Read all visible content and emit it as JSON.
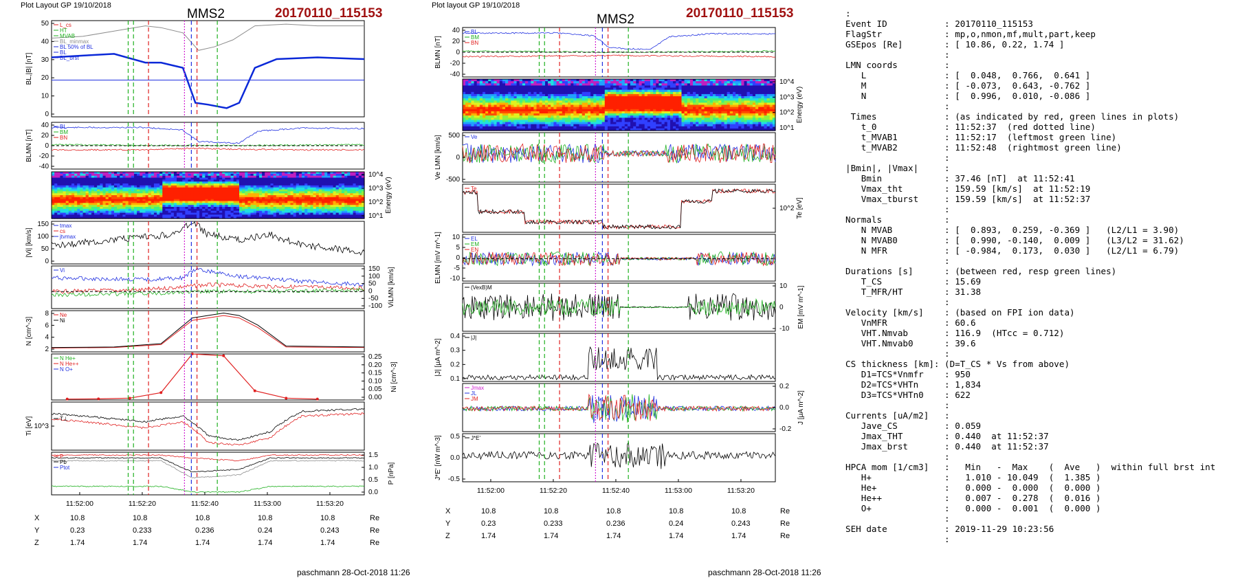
{
  "left_plot": {
    "layout_label": "Plot Layout GP 19/10/2018",
    "spacecraft": "MMS2",
    "event_id": "20170110_115153",
    "footer": "paschmann 28-Oct-2018 11:26",
    "x_ticks": [
      "11:52:00",
      "11:52:20",
      "11:52:40",
      "11:53:00",
      "11:53:20"
    ],
    "coords": [
      {
        "label": "X",
        "values": [
          "10.8",
          "10.8",
          "10.8",
          "10.8",
          "10.8"
        ],
        "unit": "Re"
      },
      {
        "label": "Y",
        "values": [
          "0.23",
          "0.233",
          "0.236",
          "0.24",
          "0.243"
        ],
        "unit": "Re"
      },
      {
        "label": "Z",
        "values": [
          "1.74",
          "1.74",
          "1.74",
          "1.74",
          "1.74"
        ],
        "unit": "Re"
      }
    ]
  },
  "middle_plot": {
    "layout_label": "Plot layout GP 19/10/2018",
    "spacecraft": "MMS2",
    "event_id": "20170110_115153",
    "footer": "paschmann 28-Oct-2018 11:26",
    "x_ticks": [
      "11:52:00",
      "11:52:20",
      "11:52:40",
      "11:53:00",
      "11:53:20"
    ],
    "coords": [
      {
        "label": "X",
        "values": [
          "10.8",
          "10.8",
          "10.8",
          "10.8",
          "10.8"
        ],
        "unit": "Re"
      },
      {
        "label": "Y",
        "values": [
          "0.23",
          "0.233",
          "0.236",
          "0.24",
          "0.243"
        ],
        "unit": "Re"
      },
      {
        "label": "Z",
        "values": [
          "1.74",
          "1.74",
          "1.74",
          "1.74",
          "1.74"
        ],
        "unit": "Re"
      }
    ]
  },
  "colors": {
    "red": "#e02020",
    "green": "#1fb01f",
    "blue": "#2030e0",
    "black": "#000000",
    "gray": "#8c8c8c",
    "thick_blue": "#0a28d8",
    "title_red": "#a01010",
    "magenta": "#d020d0"
  },
  "chart_data": [
    {
      "type": "line",
      "panel": "left-B",
      "ylabel": "BL,|B| [nT]",
      "ylim": [
        0,
        55
      ],
      "yticks": [
        "50",
        "40",
        "30",
        "20",
        "10",
        "0"
      ],
      "legend": [
        "L_cs",
        "HT",
        "MVAB",
        "BL_minmax",
        "BL 50% of BL",
        "BL",
        "BL_brst"
      ],
      "series": [
        {
          "name": "|B|",
          "color": "#8c8c8c",
          "x": [
            0,
            0.1,
            0.2,
            0.3,
            0.35,
            0.42,
            0.47,
            0.52,
            0.58,
            0.65,
            0.75,
            0.85,
            1
          ],
          "values": [
            45,
            46,
            49,
            52,
            51,
            48,
            38,
            40,
            44,
            52,
            53,
            52,
            52
          ]
        },
        {
          "name": "BL",
          "color": "#0a28d8",
          "x": [
            0,
            0.1,
            0.2,
            0.3,
            0.35,
            0.42,
            0.46,
            0.5,
            0.56,
            0.6,
            0.65,
            0.72,
            0.85,
            1
          ],
          "values": [
            34,
            35,
            36,
            31,
            31,
            28,
            8,
            7,
            5,
            8,
            28,
            33,
            34,
            33
          ]
        },
        {
          "name": "BL 50% of BL",
          "color": "#2030e0",
          "x": [
            0,
            1
          ],
          "values": [
            21,
            21
          ]
        }
      ]
    },
    {
      "type": "line",
      "panel": "left-BLMN",
      "ylabel": "BLMN [nT]",
      "ylim": [
        -45,
        45
      ],
      "yticks": [
        "40",
        "20",
        "0",
        "-20",
        "-40"
      ],
      "legend": [
        "BL",
        "BM",
        "BN"
      ],
      "series": [
        {
          "name": "BL",
          "color": "#2030e0",
          "x": [
            0,
            0.3,
            0.42,
            0.47,
            0.55,
            0.6,
            0.66,
            0.8,
            1
          ],
          "values": [
            35,
            35,
            30,
            8,
            6,
            5,
            28,
            34,
            33
          ]
        },
        {
          "name": "BM",
          "color": "#e02020",
          "x": [
            0,
            0.3,
            0.45,
            0.6,
            0.8,
            1
          ],
          "values": [
            -8,
            -8,
            -5,
            -7,
            -8,
            -8
          ]
        },
        {
          "name": "BN",
          "color": "#1fb01f",
          "x": [
            0,
            0.5,
            1
          ],
          "values": [
            2,
            0,
            2
          ]
        }
      ]
    },
    {
      "type": "heatmap",
      "panel": "left-spectrogram",
      "ylabel": "Energy (eV)",
      "yticks": [
        "10^4",
        "10^3",
        "10^2",
        "10^1"
      ]
    },
    {
      "type": "line",
      "panel": "left-Vi",
      "ylabel": "|Vi| [km/s]",
      "ylim": [
        0,
        160
      ],
      "yticks": [
        "150",
        "100",
        "50",
        "0"
      ],
      "legend": [
        "tmax",
        "cs",
        "jtvmax"
      ],
      "series": [
        {
          "name": "|Vi|",
          "color": "#000000",
          "x": [
            0,
            0.1,
            0.2,
            0.3,
            0.38,
            0.42,
            0.45,
            0.5,
            0.6,
            0.7,
            0.8,
            0.9,
            1
          ],
          "values": [
            70,
            80,
            90,
            100,
            110,
            130,
            160,
            110,
            90,
            110,
            70,
            60,
            40
          ]
        }
      ]
    },
    {
      "type": "line",
      "panel": "left-ViLMN",
      "ylabel": "ViLMN [km/s]",
      "ylim": [
        -100,
        150
      ],
      "yticks": [
        "150",
        "100",
        "50",
        "0",
        "-50",
        "-100"
      ],
      "legend": [
        "Vi"
      ],
      "series": [
        {
          "name": "ViL",
          "color": "#2030e0",
          "x": [
            0,
            0.3,
            0.42,
            0.46,
            0.6,
            0.8,
            1
          ],
          "values": [
            80,
            70,
            80,
            130,
            90,
            60,
            40
          ]
        },
        {
          "name": "ViM",
          "color": "#e02020",
          "x": [
            0,
            0.3,
            0.5,
            0.7,
            1
          ],
          "values": [
            0,
            10,
            40,
            30,
            20
          ]
        },
        {
          "name": "ViN",
          "color": "#1fb01f",
          "x": [
            0,
            0.3,
            0.5,
            0.7,
            1
          ],
          "values": [
            -20,
            -10,
            0,
            0,
            10
          ]
        }
      ]
    },
    {
      "type": "line",
      "panel": "left-N",
      "ylabel": "N [cm^-3]",
      "ylim": [
        0,
        8.5
      ],
      "yticks": [
        "8",
        "6",
        "4",
        "2"
      ],
      "legend": [
        "Ne",
        "Ni"
      ],
      "series": [
        {
          "name": "Ne",
          "color": "#e02020",
          "x": [
            0,
            0.2,
            0.35,
            0.45,
            0.55,
            0.6,
            0.66,
            0.75,
            1
          ],
          "values": [
            0.8,
            0.9,
            1.5,
            6.5,
            7.5,
            7,
            5,
            1,
            0.9
          ]
        },
        {
          "name": "Ni",
          "color": "#000000",
          "x": [
            0,
            0.2,
            0.35,
            0.45,
            0.55,
            0.6,
            0.66,
            0.75,
            1
          ],
          "values": [
            0.9,
            1,
            1.7,
            7,
            8,
            7.5,
            5.5,
            1.2,
            1
          ]
        }
      ]
    },
    {
      "type": "line",
      "panel": "left-Ni",
      "ylabel": "Ni [cm^-3]",
      "ylim": [
        0,
        0.25
      ],
      "yticks": [
        "0.25",
        "0.20",
        "0.15",
        "0.10",
        "0.05",
        "0.00"
      ],
      "legend": [
        "N He+",
        "N He++",
        "N O+"
      ],
      "series": [
        {
          "name": "N He++",
          "color": "#e02020",
          "x": [
            0.05,
            0.15,
            0.25,
            0.35,
            0.45,
            0.55,
            0.65,
            0.75,
            0.85
          ],
          "values": [
            0.005,
            0.006,
            0.01,
            0.04,
            0.25,
            0.24,
            0.05,
            0.01,
            0.005
          ]
        }
      ]
    },
    {
      "type": "line",
      "panel": "left-Ti",
      "ylabel": "Ti [eV]",
      "yticks": [
        "10^3"
      ],
      "legend": [
        "T⊥"
      ],
      "series": [
        {
          "name": "T||",
          "color": "#000000",
          "x": [
            0,
            0.3,
            0.42,
            0.5,
            0.6,
            0.7,
            0.8,
            1
          ],
          "values": [
            1700,
            1400,
            1600,
            1000,
            900,
            1100,
            1800,
            1900
          ]
        },
        {
          "name": "T⊥",
          "color": "#e02020",
          "x": [
            0,
            0.3,
            0.42,
            0.5,
            0.6,
            0.7,
            0.8,
            1
          ],
          "values": [
            1500,
            1200,
            1400,
            850,
            800,
            950,
            1600,
            1700
          ]
        }
      ]
    },
    {
      "type": "line",
      "panel": "left-P",
      "ylabel": "P [nPa]",
      "ylim": [
        0,
        1.5
      ],
      "yticks": [
        "1.5",
        "1.0",
        "0.5",
        "0.0"
      ],
      "legend": [
        "P",
        "Pb",
        "Ptot"
      ],
      "series": [
        {
          "name": "Pb",
          "color": "#8c8c8c",
          "x": [
            0,
            0.35,
            0.45,
            0.6,
            0.7,
            1
          ],
          "values": [
            1.2,
            1.2,
            0.6,
            0.7,
            1.2,
            1.2
          ]
        },
        {
          "name": "Ptot",
          "color": "#000000",
          "x": [
            0,
            0.35,
            0.45,
            0.6,
            0.7,
            1
          ],
          "values": [
            1.3,
            1.3,
            0.8,
            0.9,
            1.3,
            1.3
          ]
        },
        {
          "name": "P",
          "color": "#1fb01f",
          "x": [
            0,
            0.35,
            0.45,
            0.6,
            0.7,
            1
          ],
          "values": [
            0.3,
            0.3,
            0.1,
            0.1,
            0.3,
            0.3
          ]
        },
        {
          "name": "P_red",
          "color": "#e02020",
          "x": [
            0,
            0.35,
            0.45,
            0.6,
            0.7,
            1
          ],
          "values": [
            1.4,
            1.4,
            1.3,
            1.2,
            1.4,
            1.4
          ]
        }
      ]
    },
    {
      "type": "line",
      "panel": "mid-BLMN",
      "ylabel": "BLMN [nT]",
      "ylim": [
        -45,
        45
      ],
      "yticks": [
        "40",
        "20",
        "0",
        "-20",
        "-40"
      ],
      "legend": [
        "BL",
        "BM",
        "BN"
      ],
      "series": [
        {
          "name": "BL",
          "color": "#2030e0",
          "x": [
            0,
            0.3,
            0.42,
            0.47,
            0.55,
            0.6,
            0.66,
            0.8,
            1
          ],
          "values": [
            35,
            35,
            30,
            8,
            6,
            5,
            28,
            34,
            33
          ]
        },
        {
          "name": "BM",
          "color": "#e02020",
          "x": [
            0,
            0.5,
            1
          ],
          "values": [
            -8,
            -6,
            -8
          ]
        },
        {
          "name": "BN",
          "color": "#1fb01f",
          "x": [
            0,
            0.5,
            1
          ],
          "values": [
            2,
            0,
            2
          ]
        }
      ]
    },
    {
      "type": "heatmap",
      "panel": "mid-spectrogram",
      "ylabel": "Energy (eV)",
      "yticks": [
        "10^4",
        "10^3",
        "10^2",
        "10^1"
      ]
    },
    {
      "type": "line",
      "panel": "mid-Ve",
      "ylabel": "Ve LMN [km/s]",
      "ylim": [
        -600,
        600
      ],
      "yticks": [
        "500",
        "0",
        "-500"
      ],
      "legend": [
        "Ve"
      ]
    },
    {
      "type": "line",
      "panel": "mid-Te",
      "ylabel": "Te [eV]",
      "yticks": [
        "10^2"
      ],
      "legend": [
        "Te"
      ]
    },
    {
      "type": "line",
      "panel": "mid-E",
      "ylabel": "ELMN [mV m^-1]",
      "ylim": [
        -12,
        12
      ],
      "yticks": [
        "10",
        "5",
        "0",
        "-5",
        "-10"
      ],
      "legend": [
        "EL",
        "EM",
        "EN"
      ]
    },
    {
      "type": "line",
      "panel": "mid-EM",
      "ylabel": "EM [mV m^-1]",
      "ylim": [
        -12,
        12
      ],
      "yticks": [
        "10",
        "0",
        "-10"
      ],
      "legend": [
        "(VexB)M"
      ]
    },
    {
      "type": "line",
      "panel": "mid-J",
      "ylabel": "|J| [μA m^-2]",
      "ylim": [
        0,
        0.45
      ],
      "yticks": [
        "0.4",
        "0.3",
        "0.2",
        "0.1"
      ],
      "legend": [
        "|J|"
      ]
    },
    {
      "type": "line",
      "panel": "mid-JLMN",
      "ylabel": "J [μA m^-2]",
      "ylim": [
        -0.3,
        0.3
      ],
      "yticks": [
        "0.2",
        "0.0",
        "-0.2"
      ],
      "legend": [
        "Jmax",
        "JL",
        "JM"
      ]
    },
    {
      "type": "line",
      "panel": "mid-JE",
      "ylabel": "J*E' [nW m^-3]",
      "ylim": [
        -0.7,
        0.6
      ],
      "yticks": [
        "0.5",
        "0.0",
        "-0.5"
      ],
      "legend": [
        "J*E'"
      ]
    }
  ],
  "info_lines": [
    ":",
    "Event ID           : 20170110_115153",
    "FlagStr            : mp,o,nmon,mf,mult,part,keep",
    "GSEpos [Re]        : [ 10.86, 0.22, 1.74 ]",
    "                   :",
    "LMN coords         :",
    "   L               : [  0.048,  0.766,  0.641 ]",
    "   M               : [ -0.073,  0.643, -0.762 ]",
    "   N               : [  0.996,  0.010, -0.086 ]",
    "                   :",
    " Times             : (as indicated by red, green lines in plots)",
    "   t_0             : 11:52:37  (red dotted line)",
    "   t_MVAB1         : 11:52:17  (leftmost green line)",
    "   t_MVAB2         : 11:52:48  (rightmost green line)",
    "                   :",
    "|Bmin|, |Vmax|     :",
    "   Bmin            : 37.46 [nT]  at 11:52:41",
    "   Vmax_tht        : 159.59 [km/s]  at 11:52:19",
    "   Vmax_tburst     : 159.59 [km/s]  at 11:52:37",
    "                   :",
    "Normals            :",
    "   N MVAB          : [  0.893,  0.259, -0.369 ]   (L2/L1 = 3.90)",
    "   N MVAB0         : [  0.990, -0.140,  0.009 ]   (L3/L2 = 31.62)",
    "   N MFR           : [ -0.984,  0.173,  0.030 ]   (L2/L1 = 6.79)",
    "                   :",
    "Durations [s]      : (between red, resp green lines)",
    "   T_CS            : 15.69",
    "   T_MFR/HT        : 31.38",
    "                   :",
    "Velocity [km/s]    : (based on FPI ion data)",
    "   VnMFR           : 60.6",
    "   VHT.Nmvab       : 116.9  (HTcc = 0.712)",
    "   VHT.Nmvab0      : 39.6",
    "                   :",
    "CS thickness [km]: (D=T_CS * Vs from above)",
    "   D1=TCS*Vnmfr    : 950",
    "   D2=TCS*VHTn     : 1,834",
    "   D3=TCS*VHTn0    : 622",
    "                   :",
    "Currents [uA/m2]   :",
    "   Jave_CS         : 0.059",
    "   Jmax_THT        : 0.440  at 11:52:37",
    "   Jmax_brst       : 0.440  at 11:52:37",
    "                   :",
    "HPCA mom [1/cm3]   :   Min   -  Max    (  Ave   )  within full brst int",
    "   H+              :   1.010 - 10.049  (  1.385 )",
    "   He+             :   0.000 -  0.000  (  0.000 )",
    "   He++            :   0.007 -  0.278  (  0.016 )",
    "   O+              :   0.000 -  0.001  (  0.000 )",
    "                   :",
    "SEH date           : 2019-11-29 10:23:56",
    "                   :"
  ]
}
